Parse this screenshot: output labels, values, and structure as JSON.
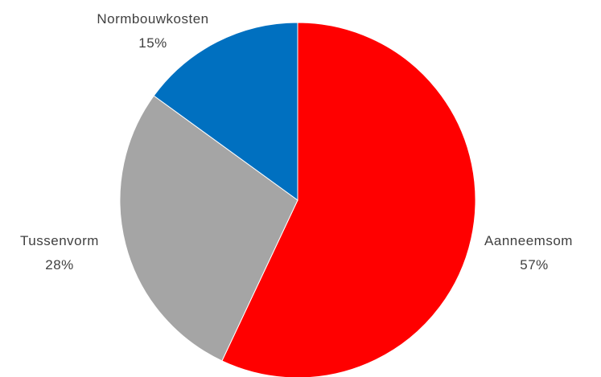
{
  "chart_data": {
    "type": "pie",
    "title": "",
    "slices": [
      {
        "label": "Aanneemsom",
        "value": 57,
        "percent_label": "57%",
        "color": "#FF0000"
      },
      {
        "label": "Tussenvorm",
        "value": 28,
        "percent_label": "28%",
        "color": "#A5A5A5"
      },
      {
        "label": "Normbouwkosten",
        "value": 15,
        "percent_label": "15%",
        "color": "#0070C0"
      }
    ],
    "start_angle_deg": 0,
    "direction": "clockwise",
    "legend": "none",
    "data_labels": "outside"
  }
}
